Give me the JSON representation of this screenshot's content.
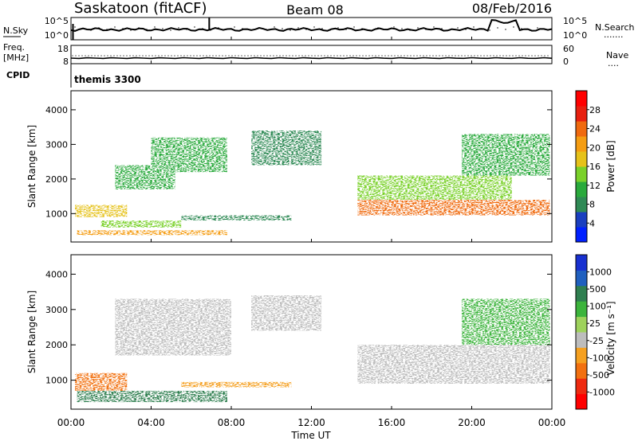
{
  "header": {
    "station": "Saskatoon (fitACF)",
    "beam": "Beam 08",
    "date": "08/Feb/2016"
  },
  "noise_panel": {
    "left_label": "N.Sky",
    "left_ticks": [
      "10^5",
      "10^0"
    ],
    "right_ticks": [
      "10^5",
      "10^0"
    ],
    "right_label": "N.Search",
    "right_label_dots": "·······"
  },
  "freq_panel": {
    "left_label_line1": "Freq.",
    "left_label_line2": "[MHz]",
    "left_ticks": [
      "18",
      "8"
    ],
    "right_ticks": [
      "60",
      "0"
    ],
    "right_label": "Nave",
    "right_label_dots": "····"
  },
  "cpid_panel": {
    "label": "CPID",
    "value": "themis 3300"
  },
  "time_axis": {
    "label": "Time UT",
    "ticks": [
      "00:00",
      "04:00",
      "08:00",
      "12:00",
      "16:00",
      "20:00",
      "00:00"
    ]
  },
  "chart_data": [
    {
      "type": "heatmap",
      "panel": "power",
      "ylabel": "Slant Range [km]",
      "ylim": [
        180,
        4550
      ],
      "yticks": [
        "1000",
        "2000",
        "3000",
        "4000"
      ],
      "colorbar": {
        "label": "Power [dB]",
        "ticks": [
          "28",
          "24",
          "20",
          "16",
          "12",
          "8",
          "4"
        ],
        "colors": [
          "#0020ff",
          "#1a3fbf",
          "#2f8a55",
          "#2aaa3c",
          "#7ad12a",
          "#e6c21a",
          "#f59d12",
          "#f06a0f",
          "#e8200f",
          "#ff0000"
        ]
      },
      "regions": [
        {
          "t": [
            0.3,
            7.8
          ],
          "r": [
            380,
            520
          ],
          "value": 22
        },
        {
          "t": [
            0.2,
            2.8
          ],
          "r": [
            900,
            1250
          ],
          "value": 18
        },
        {
          "t": [
            1.5,
            5.5
          ],
          "r": [
            600,
            800
          ],
          "value": 14
        },
        {
          "t": [
            2.2,
            5.2
          ],
          "r": [
            1700,
            2400
          ],
          "value": 12
        },
        {
          "t": [
            4.0,
            7.8
          ],
          "r": [
            2200,
            3200
          ],
          "value": 10
        },
        {
          "t": [
            5.5,
            11.0
          ],
          "r": [
            800,
            950
          ],
          "value": 8
        },
        {
          "t": [
            9.0,
            12.5
          ],
          "r": [
            2400,
            3400
          ],
          "value": 6
        },
        {
          "t": [
            14.3,
            23.9
          ],
          "r": [
            950,
            1400
          ],
          "value": 24
        },
        {
          "t": [
            14.3,
            22.0
          ],
          "r": [
            1400,
            2100
          ],
          "value": 14
        },
        {
          "t": [
            19.5,
            23.9
          ],
          "r": [
            2100,
            3300
          ],
          "value": 10
        }
      ]
    },
    {
      "type": "heatmap",
      "panel": "velocity",
      "ylabel": "Slant Range [km]",
      "ylim": [
        180,
        4550
      ],
      "yticks": [
        "1000",
        "2000",
        "3000",
        "4000"
      ],
      "colorbar": {
        "label": "Velocity [m s⁻¹]",
        "ticks": [
          "1000",
          "500",
          "100",
          "25",
          "-25",
          "-100",
          "-500",
          "-1000"
        ],
        "colors": [
          "#ff0000",
          "#ee2a10",
          "#f27010",
          "#f5a020",
          "#bdbdbd",
          "#9ed25c",
          "#3cb43c",
          "#2f7f50",
          "#2060bf",
          "#1830d0"
        ]
      },
      "regions": [
        {
          "t": [
            0.3,
            7.8
          ],
          "r": [
            380,
            700
          ],
          "value": 150
        },
        {
          "t": [
            0.2,
            2.8
          ],
          "r": [
            700,
            1200
          ],
          "value": -150
        },
        {
          "t": [
            2.2,
            8.0
          ],
          "r": [
            1700,
            3300
          ],
          "value": 0
        },
        {
          "t": [
            5.5,
            11.0
          ],
          "r": [
            800,
            950
          ],
          "value": -60
        },
        {
          "t": [
            9.0,
            12.5
          ],
          "r": [
            2400,
            3400
          ],
          "value": 0
        },
        {
          "t": [
            14.3,
            23.9
          ],
          "r": [
            900,
            2000
          ],
          "value": 0
        },
        {
          "t": [
            19.5,
            23.9
          ],
          "r": [
            2000,
            3300
          ],
          "value": 80
        }
      ]
    }
  ]
}
